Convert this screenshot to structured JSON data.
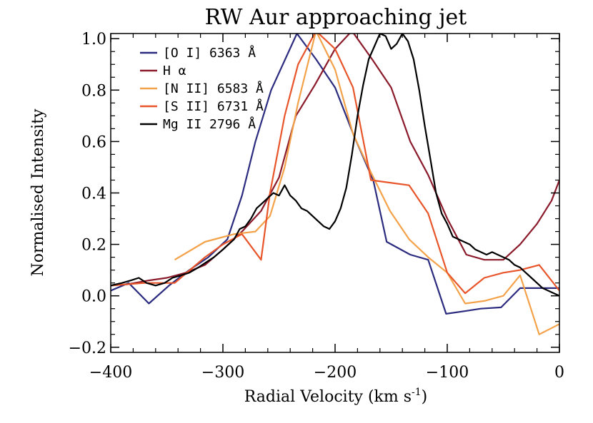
{
  "chart_data": {
    "type": "line",
    "title": "RW Aur approaching jet",
    "xlabel": "Radial Velocity (km s",
    "xlabel_sup": "-1",
    "xlabel_close": ")",
    "ylabel": "Normalised Intensity",
    "xlim": [
      -400,
      0
    ],
    "ylim": [
      -0.22,
      1.02
    ],
    "xticks": [
      -400,
      -300,
      -200,
      -100,
      0
    ],
    "xtick_labels": [
      "−400",
      "−300",
      "−200",
      "−100",
      "0"
    ],
    "yticks": [
      -0.2,
      0.0,
      0.2,
      0.4,
      0.6,
      0.8,
      1.0
    ],
    "ytick_labels": [
      "−0.2",
      "0.0",
      "0.2",
      "0.4",
      "0.6",
      "0.8",
      "1.0"
    ],
    "grid": false,
    "legend_position": "top-left",
    "series": [
      {
        "name": "[O I] 6363 Å",
        "color": "#2b2b7f",
        "x": [
          -400,
          -384,
          -366,
          -348,
          -330,
          -313,
          -296,
          -283,
          -271,
          -257,
          -234,
          -217,
          -200,
          -183,
          -166,
          -154,
          -133,
          -117,
          -101,
          -85,
          -70,
          -52,
          -35,
          -18,
          0
        ],
        "y": [
          0.02,
          0.05,
          -0.03,
          0.04,
          0.1,
          0.15,
          0.22,
          0.39,
          0.6,
          0.8,
          1.02,
          0.92,
          0.81,
          0.62,
          0.45,
          0.21,
          0.16,
          0.14,
          -0.07,
          -0.06,
          -0.05,
          -0.045,
          0.03,
          0.03,
          0.03
        ]
      },
      {
        "name": "H α",
        "color": "#8b1a2b",
        "x": [
          -400,
          -385,
          -366,
          -350,
          -333,
          -316,
          -300,
          -283,
          -266,
          -250,
          -235,
          -218,
          -200,
          -185,
          -167,
          -150,
          -133,
          -117,
          -100,
          -83,
          -67,
          -50,
          -35,
          -20,
          -7,
          0
        ],
        "y": [
          0.04,
          0.045,
          0.06,
          0.07,
          0.09,
          0.12,
          0.18,
          0.25,
          0.33,
          0.46,
          0.7,
          0.82,
          0.96,
          1.03,
          0.92,
          0.81,
          0.6,
          0.47,
          0.3,
          0.16,
          0.14,
          0.14,
          0.2,
          0.28,
          0.37,
          0.45
        ]
      },
      {
        "name": "[N II] 6583 Å",
        "color": "#f4a24a",
        "x": [
          -343,
          -316,
          -290,
          -271,
          -258,
          -245,
          -233,
          -217,
          -200,
          -184,
          -168,
          -151,
          -134,
          -117,
          -100,
          -84,
          -67,
          -50,
          -35,
          -18,
          0
        ],
        "y": [
          0.14,
          0.21,
          0.24,
          0.25,
          0.31,
          0.5,
          0.75,
          1.03,
          0.88,
          0.63,
          0.48,
          0.33,
          0.22,
          0.15,
          0.09,
          -0.03,
          -0.02,
          0.0,
          0.08,
          -0.15,
          -0.11
        ]
      },
      {
        "name": "[S II] 6731 Å",
        "color": "#e8552a",
        "x": [
          -400,
          -370,
          -343,
          -316,
          -300,
          -283,
          -266,
          -258,
          -245,
          -233,
          -217,
          -200,
          -184,
          -168,
          -151,
          -134,
          -117,
          -100,
          -84,
          -67,
          -50,
          -35,
          -18,
          0
        ],
        "y": [
          0.04,
          0.05,
          0.05,
          0.15,
          0.2,
          0.24,
          0.14,
          0.4,
          0.7,
          0.9,
          1.03,
          0.96,
          0.81,
          0.45,
          0.44,
          0.43,
          0.32,
          0.09,
          0.01,
          0.07,
          0.09,
          0.1,
          0.12,
          0.02
        ]
      },
      {
        "name": "Mg II 2796 Å",
        "color": "#000000",
        "x": [
          -400,
          -390,
          -382,
          -375,
          -368,
          -360,
          -352,
          -345,
          -337,
          -330,
          -322,
          -315,
          -308,
          -300,
          -295,
          -290,
          -285,
          -280,
          -275,
          -270,
          -265,
          -260,
          -255,
          -250,
          -245,
          -240,
          -235,
          -230,
          -225,
          -220,
          -215,
          -210,
          -205,
          -200,
          -195,
          -190,
          -185,
          -180,
          -175,
          -170,
          -165,
          -160,
          -155,
          -150,
          -145,
          -140,
          -135,
          -130,
          -125,
          -120,
          -115,
          -110,
          -105,
          -100,
          -95,
          -90,
          -85,
          -80,
          -75,
          -70,
          -65,
          -60,
          -55,
          -50,
          -45,
          -40,
          -35,
          -30,
          -25,
          -20,
          -15,
          -10,
          -5,
          0
        ],
        "y": [
          0.04,
          0.05,
          0.06,
          0.07,
          0.05,
          0.04,
          0.05,
          0.07,
          0.08,
          0.09,
          0.11,
          0.13,
          0.15,
          0.18,
          0.2,
          0.22,
          0.26,
          0.27,
          0.3,
          0.34,
          0.36,
          0.38,
          0.4,
          0.39,
          0.43,
          0.39,
          0.37,
          0.34,
          0.33,
          0.31,
          0.29,
          0.27,
          0.26,
          0.29,
          0.34,
          0.42,
          0.55,
          0.7,
          0.82,
          0.92,
          0.97,
          1.02,
          1.01,
          0.96,
          0.98,
          1.02,
          0.99,
          0.92,
          0.8,
          0.66,
          0.53,
          0.4,
          0.32,
          0.28,
          0.23,
          0.22,
          0.21,
          0.2,
          0.18,
          0.17,
          0.16,
          0.17,
          0.16,
          0.15,
          0.14,
          0.12,
          0.11,
          0.09,
          0.07,
          0.05,
          0.03,
          0.02,
          0.01,
          0.0
        ]
      }
    ]
  }
}
